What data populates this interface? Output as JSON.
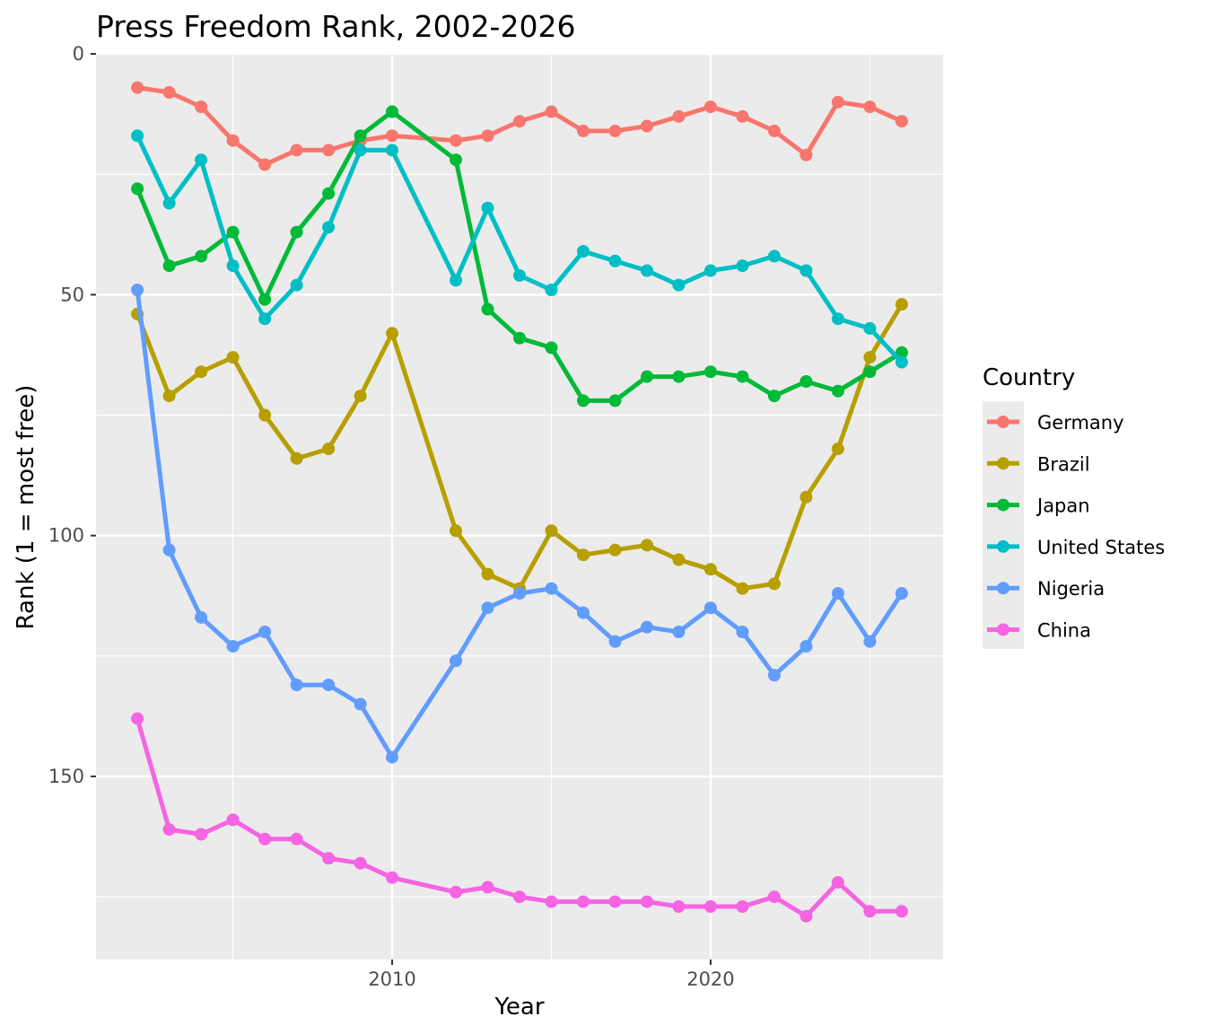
{
  "chart_data": {
    "type": "line",
    "title": "Press Freedom Rank, 2002-2026",
    "xlabel": "Year",
    "ylabel": "Rank (1 = most free)",
    "xlim": [
      2000.7,
      2027.3
    ],
    "ylim": [
      0,
      188
    ],
    "y_reversed": true,
    "x_ticks": [
      2010,
      2020
    ],
    "y_ticks": [
      0,
      50,
      100,
      150
    ],
    "grid": true,
    "legend_title": "Country",
    "legend_position": "right",
    "series": [
      {
        "name": "Germany",
        "color": "#F8766D",
        "points": [
          [
            2002,
            7
          ],
          [
            2003,
            8
          ],
          [
            2004,
            11
          ],
          [
            2005,
            18
          ],
          [
            2006,
            23
          ],
          [
            2007,
            20
          ],
          [
            2008,
            20
          ],
          [
            2009,
            18
          ],
          [
            2010,
            17
          ],
          [
            2012,
            18
          ],
          [
            2013,
            17
          ],
          [
            2014,
            14
          ],
          [
            2015,
            12
          ],
          [
            2016,
            16
          ],
          [
            2017,
            16
          ],
          [
            2018,
            15
          ],
          [
            2019,
            13
          ],
          [
            2020,
            11
          ],
          [
            2021,
            13
          ],
          [
            2022,
            16
          ],
          [
            2023,
            21
          ],
          [
            2024,
            10
          ],
          [
            2025,
            11
          ],
          [
            2026,
            14
          ]
        ]
      },
      {
        "name": "Brazil",
        "color": "#B79F00",
        "points": [
          [
            2002,
            54
          ],
          [
            2003,
            71
          ],
          [
            2004,
            66
          ],
          [
            2005,
            63
          ],
          [
            2006,
            75
          ],
          [
            2007,
            84
          ],
          [
            2008,
            82
          ],
          [
            2009,
            71
          ],
          [
            2010,
            58
          ],
          [
            2012,
            99
          ],
          [
            2013,
            108
          ],
          [
            2014,
            111
          ],
          [
            2015,
            99
          ],
          [
            2016,
            104
          ],
          [
            2017,
            103
          ],
          [
            2018,
            102
          ],
          [
            2019,
            105
          ],
          [
            2020,
            107
          ],
          [
            2021,
            111
          ],
          [
            2022,
            110
          ],
          [
            2023,
            92
          ],
          [
            2024,
            82
          ],
          [
            2025,
            63
          ],
          [
            2026,
            52
          ]
        ]
      },
      {
        "name": "Japan",
        "color": "#00BA38",
        "points": [
          [
            2002,
            28
          ],
          [
            2003,
            44
          ],
          [
            2004,
            42
          ],
          [
            2005,
            37
          ],
          [
            2006,
            51
          ],
          [
            2007,
            37
          ],
          [
            2008,
            29
          ],
          [
            2009,
            17
          ],
          [
            2010,
            12
          ],
          [
            2012,
            22
          ],
          [
            2013,
            53
          ],
          [
            2014,
            59
          ],
          [
            2015,
            61
          ],
          [
            2016,
            72
          ],
          [
            2017,
            72
          ],
          [
            2018,
            67
          ],
          [
            2019,
            67
          ],
          [
            2020,
            66
          ],
          [
            2021,
            67
          ],
          [
            2022,
            71
          ],
          [
            2023,
            68
          ],
          [
            2024,
            70
          ],
          [
            2025,
            66
          ],
          [
            2026,
            62
          ]
        ]
      },
      {
        "name": "United States",
        "color": "#00BFC4",
        "points": [
          [
            2002,
            17
          ],
          [
            2003,
            31
          ],
          [
            2004,
            22
          ],
          [
            2005,
            44
          ],
          [
            2006,
            55
          ],
          [
            2007,
            48
          ],
          [
            2008,
            36
          ],
          [
            2009,
            20
          ],
          [
            2010,
            20
          ],
          [
            2012,
            47
          ],
          [
            2013,
            32
          ],
          [
            2014,
            46
          ],
          [
            2015,
            49
          ],
          [
            2016,
            41
          ],
          [
            2017,
            43
          ],
          [
            2018,
            45
          ],
          [
            2019,
            48
          ],
          [
            2020,
            45
          ],
          [
            2021,
            44
          ],
          [
            2022,
            42
          ],
          [
            2023,
            45
          ],
          [
            2024,
            55
          ],
          [
            2025,
            57
          ],
          [
            2026,
            64
          ]
        ]
      },
      {
        "name": "Nigeria",
        "color": "#619CFF",
        "points": [
          [
            2002,
            49
          ],
          [
            2003,
            103
          ],
          [
            2004,
            117
          ],
          [
            2005,
            123
          ],
          [
            2006,
            120
          ],
          [
            2007,
            131
          ],
          [
            2008,
            131
          ],
          [
            2009,
            135
          ],
          [
            2010,
            146
          ],
          [
            2012,
            126
          ],
          [
            2013,
            115
          ],
          [
            2014,
            112
          ],
          [
            2015,
            111
          ],
          [
            2016,
            116
          ],
          [
            2017,
            122
          ],
          [
            2018,
            119
          ],
          [
            2019,
            120
          ],
          [
            2020,
            115
          ],
          [
            2021,
            120
          ],
          [
            2022,
            129
          ],
          [
            2023,
            123
          ],
          [
            2024,
            112
          ],
          [
            2025,
            122
          ],
          [
            2026,
            112
          ]
        ]
      },
      {
        "name": "China",
        "color": "#F564E3",
        "points": [
          [
            2002,
            138
          ],
          [
            2003,
            161
          ],
          [
            2004,
            162
          ],
          [
            2005,
            159
          ],
          [
            2006,
            163
          ],
          [
            2007,
            163
          ],
          [
            2008,
            167
          ],
          [
            2009,
            168
          ],
          [
            2010,
            171
          ],
          [
            2012,
            174
          ],
          [
            2013,
            173
          ],
          [
            2014,
            175
          ],
          [
            2015,
            176
          ],
          [
            2016,
            176
          ],
          [
            2017,
            176
          ],
          [
            2018,
            176
          ],
          [
            2019,
            177
          ],
          [
            2020,
            177
          ],
          [
            2021,
            177
          ],
          [
            2022,
            175
          ],
          [
            2023,
            179
          ],
          [
            2024,
            172
          ],
          [
            2025,
            178
          ],
          [
            2026,
            178
          ]
        ]
      }
    ]
  }
}
